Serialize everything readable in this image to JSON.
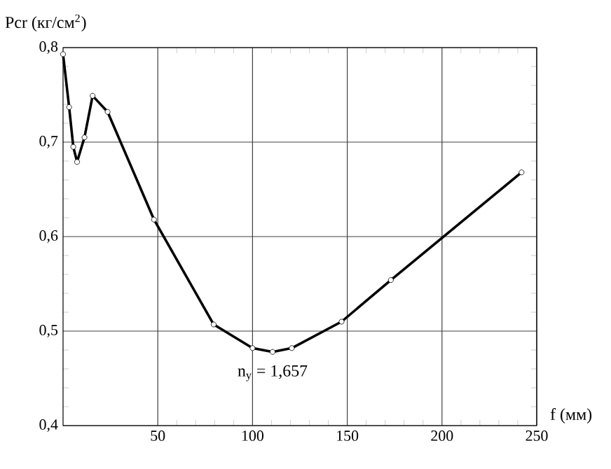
{
  "chart_data": {
    "type": "line",
    "ylabel": "Pcr (кг/см$^{2}$)",
    "xlabel": "f (мм)",
    "x": [
      0,
      3.2,
      5.4,
      7.4,
      11.3,
      15.6,
      23.5,
      48,
      79.5,
      100,
      110.6,
      120.7,
      147,
      173,
      242
    ],
    "series": [
      {
        "color": "#000000",
        "values": [
          0.793,
          0.737,
          0.695,
          0.679,
          0.705,
          0.749,
          0.732,
          0.618,
          0.507,
          0.482,
          0.478,
          0.482,
          0.51,
          0.554,
          0.668
        ]
      }
    ],
    "xlim": [
      0,
      250
    ],
    "ylim": [
      0.4,
      0.8
    ],
    "xticks": [
      50,
      100,
      150,
      200,
      250
    ],
    "yticks": [
      {
        "value": 0.4,
        "label": "0,4"
      },
      {
        "value": 0.5,
        "label": "0,5"
      },
      {
        "value": 0.6,
        "label": "0,6"
      },
      {
        "value": 0.7,
        "label": "0,7"
      },
      {
        "value": 0.8,
        "label": "0,8"
      }
    ],
    "grid": true,
    "marker": "circle",
    "line_style": "solid",
    "annotations": [
      {
        "text": "n$_{y}$ = 1,657",
        "x": 110.6,
        "y": 0.478
      }
    ]
  }
}
